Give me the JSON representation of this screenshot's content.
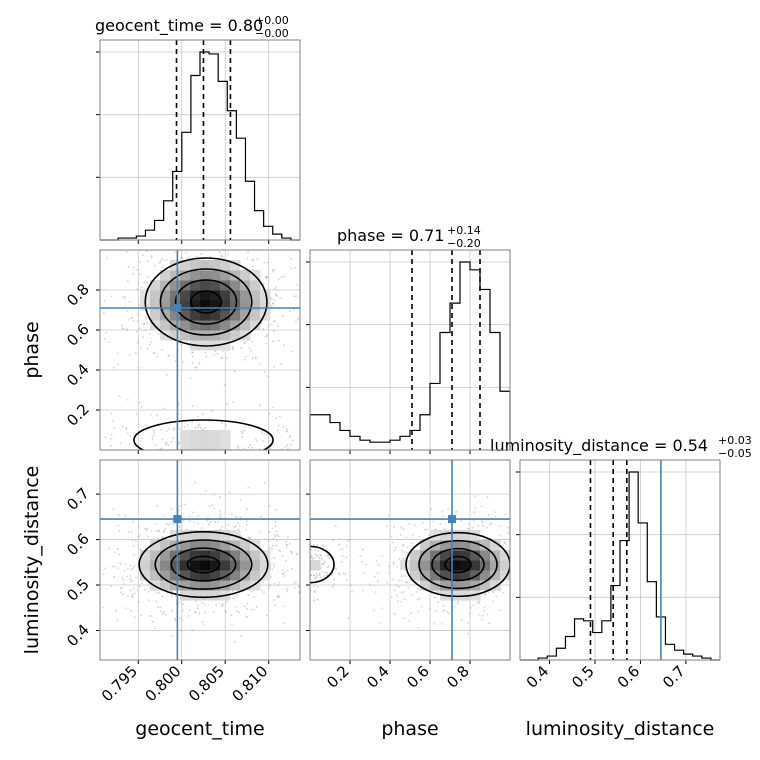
{
  "chart_data": {
    "type": "corner",
    "parameters": [
      "geocent_time",
      "phase",
      "luminosity_distance"
    ],
    "truths": {
      "geocent_time": 0.7995,
      "phase": 0.71,
      "luminosity_distance": 0.645
    },
    "truth_color": "#4682b4",
    "grid": true,
    "titles": [
      {
        "param": "geocent_time",
        "label": "geocent_time",
        "value": "0.80",
        "plus": "+0.00",
        "minus": "−0.00"
      },
      {
        "param": "phase",
        "label": "phase",
        "value": "0.71",
        "plus": "+0.14",
        "minus": "−0.20"
      },
      {
        "param": "luminosity_distance",
        "label": "luminosity_distance",
        "value": "0.54",
        "plus": "+0.03",
        "minus": "−0.05"
      }
    ],
    "ranges": {
      "geocent_time": [
        0.7906,
        0.8136
      ],
      "phase": [
        0.0,
        1.0
      ],
      "luminosity_distance": [
        0.335,
        0.775
      ]
    },
    "ticks": {
      "geocent_time": [
        "0.795",
        "0.800",
        "0.805",
        "0.810"
      ],
      "phase": [
        "0.2",
        "0.4",
        "0.6",
        "0.8"
      ],
      "luminosity_distance": [
        "0.4",
        "0.5",
        "0.6",
        "0.7"
      ]
    },
    "quantiles": {
      "geocent_time": [
        0.7994,
        0.8025,
        0.8056
      ],
      "phase": [
        0.51,
        0.71,
        0.85
      ],
      "luminosity_distance": [
        0.49,
        0.54,
        0.57
      ]
    },
    "hist1d": {
      "geocent_time": {
        "edges": [
          0.7906,
          0.8136
        ],
        "counts": [
          0,
          0,
          1,
          1,
          2,
          5,
          10,
          20,
          35,
          55,
          84,
          96,
          95,
          81,
          66,
          52,
          30,
          15,
          7,
          3,
          1,
          0
        ]
      },
      "phase": {
        "edges": [
          0.0,
          1.0
        ],
        "counts": [
          18,
          18,
          14,
          10,
          7,
          5,
          4,
          4,
          5,
          7,
          10,
          18,
          34,
          60,
          75,
          96,
          92,
          82,
          60,
          30
        ]
      },
      "luminosity_distance": {
        "edges": [
          0.335,
          0.775
        ],
        "counts": [
          0,
          0,
          1,
          2,
          6,
          12,
          21,
          20,
          14,
          20,
          38,
          61,
          96,
          70,
          40,
          22,
          8,
          5,
          3,
          2,
          1,
          0
        ]
      }
    },
    "density2d": [
      {
        "x": "geocent_time",
        "y": "phase",
        "peak": [
          0.8028,
          0.74
        ],
        "sigma": [
          0.0035,
          0.11
        ],
        "secondary": {
          "center": [
            0.8025,
            0.05
          ],
          "sigma": [
            0.004,
            0.05
          ]
        }
      },
      {
        "x": "geocent_time",
        "y": "luminosity_distance",
        "peak": [
          0.8025,
          0.545
        ],
        "sigma": [
          0.0037,
          0.036
        ]
      },
      {
        "x": "phase",
        "y": "luminosity_distance",
        "peak": [
          0.74,
          0.545
        ],
        "sigma": [
          0.13,
          0.035
        ],
        "secondary": {
          "center": [
            0.0,
            0.545
          ],
          "sigma": [
            0.06,
            0.02
          ]
        }
      }
    ]
  }
}
